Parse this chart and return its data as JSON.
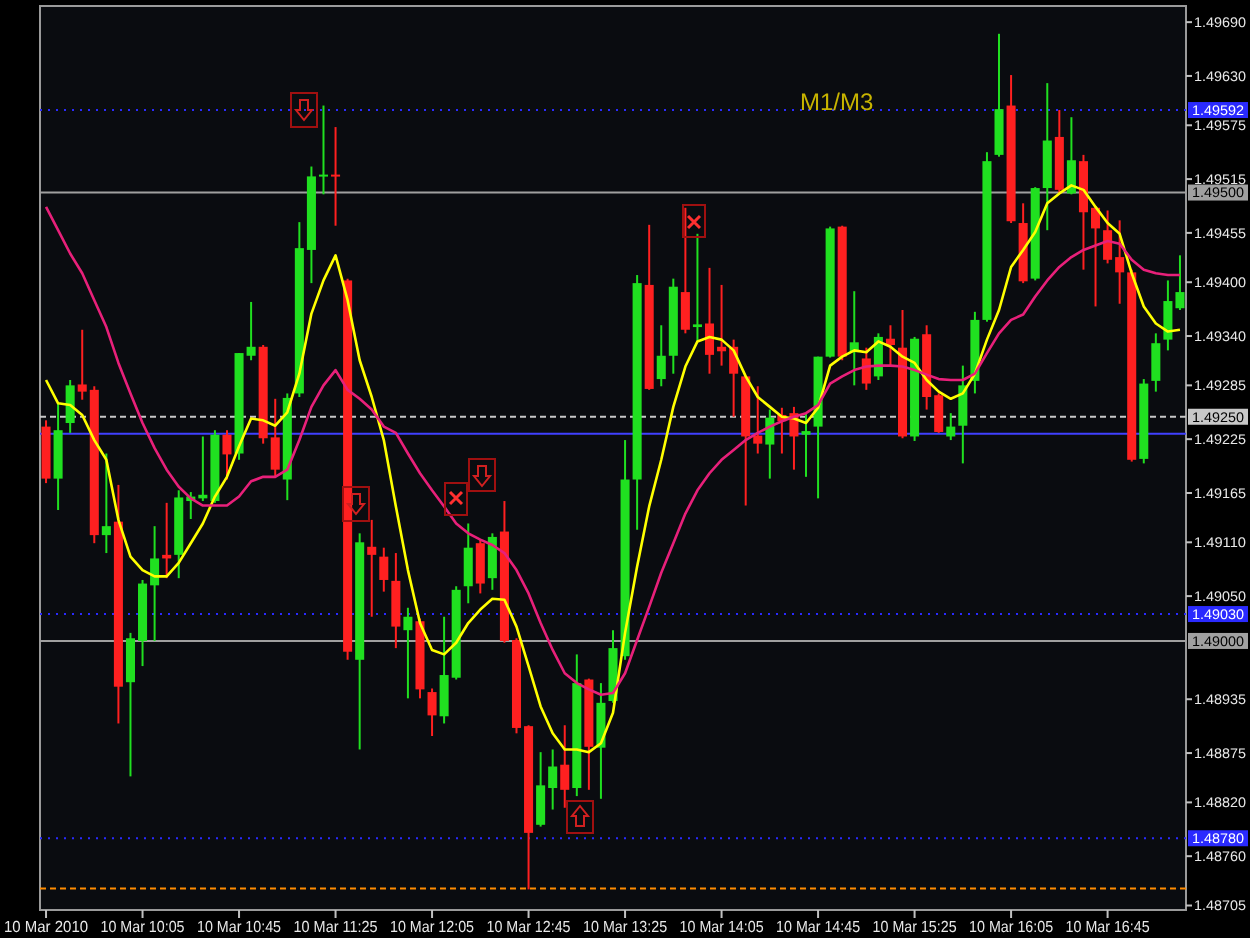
{
  "chart_data": {
    "type": "candlestick",
    "categories": [
      "10 Mar 2010",
      null,
      null,
      null,
      null,
      null,
      null,
      null,
      "10 Mar 10:05",
      null,
      null,
      null,
      null,
      null,
      null,
      null,
      "10 Mar 10:45",
      null,
      null,
      null,
      null,
      null,
      null,
      null,
      "10 Mar 11:25",
      null,
      null,
      null,
      null,
      null,
      null,
      null,
      "10 Mar 12:05",
      null,
      null,
      null,
      null,
      null,
      null,
      null,
      "10 Mar 12:45",
      null,
      null,
      null,
      null,
      null,
      null,
      null,
      "10 Mar 13:25",
      null,
      null,
      null,
      null,
      null,
      null,
      null,
      "10 Mar 14:05",
      null,
      null,
      null,
      null,
      null,
      null,
      null,
      "10 Mar 14:45",
      null,
      null,
      null,
      null,
      null,
      null,
      null,
      "10 Mar 15:25",
      null,
      null,
      null,
      null,
      null,
      null,
      null,
      "10 Mar 16:05",
      null,
      null,
      null,
      null,
      null,
      null,
      null,
      "10 Mar 16:45",
      null,
      null,
      null,
      null,
      null,
      null
    ],
    "ohlc": [
      [
        1.49239,
        1.49246,
        1.49176,
        1.49181
      ],
      [
        1.49181,
        1.49265,
        1.49146,
        1.49235
      ],
      [
        1.49243,
        1.49291,
        1.49232,
        1.49285
      ],
      [
        1.49286,
        1.49347,
        1.49269,
        1.49278
      ],
      [
        1.4928,
        1.49284,
        1.49109,
        1.49118
      ],
      [
        1.49118,
        1.49209,
        1.49098,
        1.49128
      ],
      [
        1.49133,
        1.49174,
        1.48908,
        1.48949
      ],
      [
        1.48954,
        1.49009,
        1.48849,
        1.49003
      ],
      [
        1.49,
        1.49068,
        1.48972,
        1.49064
      ],
      [
        1.49062,
        1.49128,
        1.49,
        1.49092
      ],
      [
        1.49096,
        1.49154,
        1.4907,
        1.49092
      ],
      [
        1.49096,
        1.49168,
        1.4907,
        1.4916
      ],
      [
        1.49156,
        1.49166,
        1.49136,
        1.49161
      ],
      [
        1.49159,
        1.49228,
        1.49156,
        1.49163
      ],
      [
        1.49156,
        1.49235,
        1.49154,
        1.4923
      ],
      [
        1.4923,
        1.49235,
        1.4918,
        1.49208
      ],
      [
        1.49209,
        1.49321,
        1.49202,
        1.49321
      ],
      [
        1.49318,
        1.49378,
        1.49313,
        1.49328
      ],
      [
        1.49328,
        1.4933,
        1.4922,
        1.49226
      ],
      [
        1.49227,
        1.4927,
        1.49183,
        1.49191
      ],
      [
        1.4918,
        1.49276,
        1.49157,
        1.49271
      ],
      [
        1.49276,
        1.49467,
        1.49272,
        1.49438
      ],
      [
        1.49436,
        1.49529,
        1.49399,
        1.49518
      ],
      [
        1.49518,
        1.49597,
        1.49498,
        1.4952
      ],
      [
        1.4952,
        1.49573,
        1.49463,
        1.49518
      ],
      [
        1.49402,
        1.49404,
        1.48979,
        1.48988
      ],
      [
        1.48979,
        1.4912,
        1.48879,
        1.4911
      ],
      [
        1.49105,
        1.49135,
        1.49027,
        1.49096
      ],
      [
        1.49094,
        1.49104,
        1.49055,
        1.49068
      ],
      [
        1.49067,
        1.49098,
        1.48992,
        1.49016
      ],
      [
        1.49012,
        1.49037,
        1.48936,
        1.49027
      ],
      [
        1.49022,
        1.49025,
        1.48936,
        1.48946
      ],
      [
        1.48943,
        1.48947,
        1.48894,
        1.48917
      ],
      [
        1.48916,
        1.49027,
        1.48908,
        1.48962
      ],
      [
        1.48959,
        1.49061,
        1.48957,
        1.49057
      ],
      [
        1.49061,
        1.49131,
        1.49042,
        1.49104
      ],
      [
        1.49109,
        1.49113,
        1.49053,
        1.49064
      ],
      [
        1.4907,
        1.4912,
        1.49057,
        1.49116
      ],
      [
        1.49122,
        1.49156,
        1.48998,
        1.49
      ],
      [
        1.49001,
        1.49003,
        1.48897,
        1.48903
      ],
      [
        1.48905,
        1.48906,
        1.48723,
        1.48786
      ],
      [
        1.48795,
        1.48876,
        1.48793,
        1.48839
      ],
      [
        1.48836,
        1.48879,
        1.48812,
        1.4886
      ],
      [
        1.48862,
        1.48906,
        1.48814,
        1.48834
      ],
      [
        1.48836,
        1.48985,
        1.48827,
        1.48953
      ],
      [
        1.48957,
        1.48958,
        1.48834,
        1.48882
      ],
      [
        1.48881,
        1.48953,
        1.48824,
        1.48931
      ],
      [
        1.48933,
        1.49012,
        1.48931,
        1.48992
      ],
      [
        1.48983,
        1.49224,
        1.48979,
        1.4918
      ],
      [
        1.4918,
        1.49408,
        1.49124,
        1.49399
      ],
      [
        1.49397,
        1.49464,
        1.4928,
        1.49281
      ],
      [
        1.49292,
        1.49352,
        1.49284,
        1.49318
      ],
      [
        1.49318,
        1.49404,
        1.49298,
        1.49395
      ],
      [
        1.49389,
        1.49483,
        1.49343,
        1.49347
      ],
      [
        1.4935,
        1.49454,
        1.49334,
        1.49353
      ],
      [
        1.49354,
        1.49416,
        1.49298,
        1.49319
      ],
      [
        1.49328,
        1.49397,
        1.49307,
        1.49323
      ],
      [
        1.49328,
        1.49336,
        1.4925,
        1.49298
      ],
      [
        1.49295,
        1.49296,
        1.49151,
        1.49228
      ],
      [
        1.49229,
        1.49284,
        1.49209,
        1.4922
      ],
      [
        1.49219,
        1.49258,
        1.49181,
        1.49249
      ],
      [
        1.49252,
        1.4926,
        1.49209,
        1.49245
      ],
      [
        1.49254,
        1.49261,
        1.49191,
        1.49228
      ],
      [
        1.4923,
        1.49254,
        1.49183,
        1.49234
      ],
      [
        1.49239,
        1.49317,
        1.49159,
        1.49317
      ],
      [
        1.49317,
        1.49462,
        1.49316,
        1.4946
      ],
      [
        1.49462,
        1.49463,
        1.49313,
        1.49317
      ],
      [
        1.49322,
        1.4939,
        1.49285,
        1.49333
      ],
      [
        1.49315,
        1.49327,
        1.4928,
        1.49287
      ],
      [
        1.49295,
        1.49343,
        1.49291,
        1.49339
      ],
      [
        1.49337,
        1.49352,
        1.49306,
        1.4933
      ],
      [
        1.49327,
        1.49369,
        1.49226,
        1.49228
      ],
      [
        1.49228,
        1.49339,
        1.49223,
        1.49337
      ],
      [
        1.49342,
        1.49352,
        1.49258,
        1.49272
      ],
      [
        1.49274,
        1.49276,
        1.49232,
        1.49233
      ],
      [
        1.49228,
        1.49254,
        1.49224,
        1.49239
      ],
      [
        1.4924,
        1.49307,
        1.49198,
        1.49285
      ],
      [
        1.4929,
        1.49367,
        1.49276,
        1.49358
      ],
      [
        1.49358,
        1.49545,
        1.49356,
        1.49535
      ],
      [
        1.49542,
        1.49677,
        1.4954,
        1.49593
      ],
      [
        1.49597,
        1.49631,
        1.49466,
        1.49468
      ],
      [
        1.49466,
        1.49488,
        1.49399,
        1.49401
      ],
      [
        1.49404,
        1.49506,
        1.49402,
        1.49505
      ],
      [
        1.49505,
        1.49622,
        1.49458,
        1.49558
      ],
      [
        1.49562,
        1.49592,
        1.49499,
        1.49503
      ],
      [
        1.49499,
        1.49584,
        1.49498,
        1.49536
      ],
      [
        1.49535,
        1.49542,
        1.49414,
        1.49478
      ],
      [
        1.49483,
        1.49484,
        1.49373,
        1.4946
      ],
      [
        1.49458,
        1.4948,
        1.49421,
        1.49425
      ],
      [
        1.49428,
        1.49469,
        1.49376,
        1.49411
      ],
      [
        1.49411,
        1.49414,
        1.492,
        1.49202
      ],
      [
        1.49203,
        1.49292,
        1.49198,
        1.49287
      ],
      [
        1.4929,
        1.49343,
        1.49278,
        1.49332
      ],
      [
        1.49336,
        1.49402,
        1.49324,
        1.49379
      ],
      [
        1.49371,
        1.4943,
        1.49369,
        1.49389
      ]
    ],
    "colors": [
      "#ff2020",
      "#20e020",
      "#20e020",
      "#ff2020",
      "#ff2020",
      "#20e020",
      "#ff2020",
      "#20e020",
      "#20e020",
      "#20e020",
      "#ff2020",
      "#20e020",
      "#20e020",
      "#20e020",
      "#20e020",
      "#ff2020",
      "#20e020",
      "#20e020",
      "#ff2020",
      "#ff2020",
      "#20e020",
      "#20e020",
      "#20e020",
      "#20e020",
      "#ff2020",
      "#ff2020",
      "#20e020",
      "#ff2020",
      "#ff2020",
      "#ff2020",
      "#20e020",
      "#ff2020",
      "#ff2020",
      "#20e020",
      "#20e020",
      "#20e020",
      "#ff2020",
      "#20e020",
      "#ff2020",
      "#ff2020",
      "#ff2020",
      "#20e020",
      "#20e020",
      "#ff2020",
      "#20e020",
      "#ff2020",
      "#20e020",
      "#20e020",
      "#20e020",
      "#20e020",
      "#ff2020",
      "#20e020",
      "#20e020",
      "#ff2020",
      "#20e020",
      "#ff2020",
      "#ff2020",
      "#ff2020",
      "#ff2020",
      "#ff2020",
      "#20e020",
      "#ff2020",
      "#ff2020",
      "#20e020",
      "#20e020",
      "#20e020",
      "#ff2020",
      "#20e020",
      "#ff2020",
      "#20e020",
      "#ff2020",
      "#ff2020",
      "#20e020",
      "#ff2020",
      "#ff2020",
      "#20e020",
      "#20e020",
      "#20e020",
      "#20e020",
      "#20e020",
      "#ff2020",
      "#ff2020",
      "#20e020",
      "#20e020",
      "#ff2020",
      "#20e020",
      "#ff2020",
      "#ff2020",
      "#ff2020",
      "#ff2020",
      "#ff2020",
      "#20e020",
      "#20e020",
      "#20e020",
      "#20e020"
    ],
    "series": [
      {
        "type": "line",
        "color": "#ffff00",
        "values": [
          1.49291,
          1.49265,
          1.49263,
          1.49252,
          1.49224,
          1.49202,
          1.49135,
          1.49094,
          1.49079,
          1.49072,
          1.49072,
          1.49087,
          1.49109,
          1.49131,
          1.49161,
          1.49183,
          1.49217,
          1.49248,
          1.49246,
          1.4924,
          1.49255,
          1.49298,
          1.49365,
          1.49402,
          1.4943,
          1.4938,
          1.49313,
          1.49272,
          1.49224,
          1.4915,
          1.49079,
          1.4902,
          1.4899,
          1.48985,
          1.48998,
          1.4902,
          1.49035,
          1.49047,
          1.49046,
          1.49016,
          1.48972,
          1.48927,
          1.48897,
          1.48879,
          1.48879,
          1.48876,
          1.48886,
          1.4892,
          1.49009,
          1.49083,
          1.4915,
          1.49202,
          1.49261,
          1.49306,
          1.49334,
          1.49339,
          1.49336,
          1.49324,
          1.49295,
          1.49272,
          1.49261,
          1.4925,
          1.49248,
          1.49243,
          1.4926,
          1.49307,
          1.49317,
          1.49324,
          1.49322,
          1.49334,
          1.49328,
          1.49317,
          1.4931,
          1.49291,
          1.49278,
          1.4927,
          1.49276,
          1.49298,
          1.49336,
          1.49369,
          1.49417,
          1.49436,
          1.49456,
          1.49488,
          1.49499,
          1.49508,
          1.49503,
          1.49484,
          1.49466,
          1.49454,
          1.4941,
          1.49373,
          1.49354,
          1.49345,
          1.49347
        ]
      },
      {
        "type": "line",
        "color": "#e8207a",
        "values": [
          1.49484,
          1.49458,
          1.49432,
          1.4941,
          1.4938,
          1.4935,
          1.4931,
          1.49276,
          1.49243,
          1.49215,
          1.49191,
          1.49172,
          1.49159,
          1.49151,
          1.49151,
          1.49151,
          1.49161,
          1.49178,
          1.49183,
          1.49183,
          1.49191,
          1.49224,
          1.49261,
          1.49285,
          1.49302,
          1.4928,
          1.4927,
          1.49258,
          1.49239,
          1.49232,
          1.49209,
          1.49187,
          1.49168,
          1.4915,
          1.49131,
          1.4912,
          1.49113,
          1.49107,
          1.49098,
          1.49079,
          1.49053,
          1.4902,
          1.4899,
          1.48964,
          1.48953,
          1.48946,
          1.4894,
          1.48942,
          1.48964,
          1.49001,
          1.49038,
          1.49076,
          1.49109,
          1.49142,
          1.49168,
          1.49187,
          1.49202,
          1.49213,
          1.49224,
          1.49232,
          1.49239,
          1.49245,
          1.4925,
          1.49254,
          1.49263,
          1.49287,
          1.49295,
          1.49302,
          1.49306,
          1.49307,
          1.49307,
          1.49306,
          1.49302,
          1.49297,
          1.49292,
          1.49291,
          1.49291,
          1.49298,
          1.49321,
          1.49343,
          1.49358,
          1.49364,
          1.49384,
          1.49402,
          1.49417,
          1.49428,
          1.49436,
          1.49441,
          1.49446,
          1.49443,
          1.49425,
          1.49414,
          1.4941,
          1.49408,
          1.49408
        ]
      }
    ],
    "ylim": [
      1.487,
      1.49708
    ],
    "yticks": [
      {
        "value": 1.4969,
        "label": "1.49690"
      },
      {
        "value": 1.4963,
        "label": "1.49630"
      },
      {
        "value": 1.49575,
        "label": "1.49575"
      },
      {
        "value": 1.49515,
        "label": "1.49515"
      },
      {
        "value": 1.49455,
        "label": "1.49455"
      },
      {
        "value": 1.494,
        "label": "1.49400"
      },
      {
        "value": 1.4934,
        "label": "1.49340"
      },
      {
        "value": 1.49285,
        "label": "1.49285"
      },
      {
        "value": 1.49225,
        "label": "1.49225"
      },
      {
        "value": 1.49165,
        "label": "1.49165"
      },
      {
        "value": 1.4911,
        "label": "1.49110"
      },
      {
        "value": 1.4905,
        "label": "1.49050"
      },
      {
        "value": 1.48935,
        "label": "1.48935"
      },
      {
        "value": 1.48875,
        "label": "1.48875"
      },
      {
        "value": 1.4882,
        "label": "1.48820"
      },
      {
        "value": 1.4876,
        "label": "1.48760"
      },
      {
        "value": 1.48705,
        "label": "1.48705"
      }
    ],
    "ref_lines": [
      {
        "axis": "y",
        "value": 1.495,
        "label": "1.49500",
        "color": "#a0a0a0",
        "line_style": "solid"
      },
      {
        "axis": "y",
        "value": 1.49,
        "label": "1.49000",
        "color": "#a0a0a0",
        "line_style": "solid"
      },
      {
        "axis": "y",
        "value": 1.4925,
        "label": "1.49250",
        "color": "#c8c8c8",
        "line_style": "dashed"
      },
      {
        "axis": "y",
        "value": 1.49592,
        "label": "1.49592",
        "color": "#2a2aff",
        "line_style": "dotted"
      },
      {
        "axis": "y",
        "value": 1.4903,
        "label": "1.49030",
        "color": "#2a2aff",
        "line_style": "dotted"
      },
      {
        "axis": "y",
        "value": 1.4878,
        "label": "1.48780",
        "color": "#2a2aff",
        "line_style": "dotted"
      },
      {
        "axis": "y",
        "value": 1.49231,
        "color": "#4040ff",
        "line_style": "solid"
      },
      {
        "axis": "y",
        "value": 1.48724,
        "color": "#ff8c00",
        "line_style": "dashed"
      }
    ],
    "annotations": [
      "M1/M3"
    ]
  }
}
